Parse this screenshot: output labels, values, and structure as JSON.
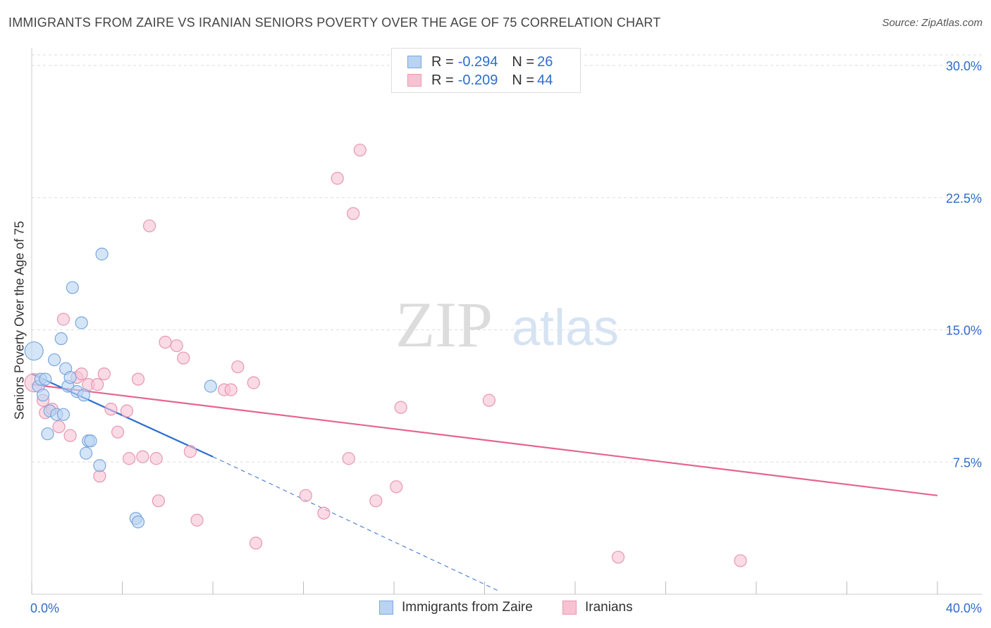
{
  "title": "IMMIGRANTS FROM ZAIRE VS IRANIAN SENIORS POVERTY OVER THE AGE OF 75 CORRELATION CHART",
  "source": "Source: ZipAtlas.com",
  "watermark": {
    "zip": "ZIP",
    "atlas": "atlas"
  },
  "legend": {
    "rows": [
      {
        "r_label": "R = ",
        "r_value": "-0.294",
        "n_label": "N = ",
        "n_value": "26"
      },
      {
        "r_label": "R = ",
        "r_value": "-0.209",
        "n_label": "N = ",
        "n_value": "44"
      }
    ]
  },
  "bottom_legend": [
    {
      "label": "Immigrants from Zaire"
    },
    {
      "label": "Iranians"
    }
  ],
  "colors": {
    "blue_fill": "#b9d3f3",
    "blue_stroke": "#7aa7dd",
    "blue_line": "#2e6fd0",
    "pink_fill": "#f7c3d3",
    "pink_stroke": "#e896b1",
    "pink_line": "#e56590",
    "axis_label": "#2e6dc9",
    "grid": "#dddddd"
  },
  "chart_data": {
    "type": "scatter",
    "title": "IMMIGRANTS FROM ZAIRE VS IRANIAN SENIORS POVERTY OVER THE AGE OF 75 CORRELATION CHART",
    "xlabel": "",
    "ylabel": "Seniors Poverty Over the Age of 75",
    "xlim": [
      0,
      40
    ],
    "ylim": [
      0,
      30.6
    ],
    "x_tick_labels": [
      "0.0%",
      "40.0%"
    ],
    "y_ticks": [
      7.5,
      15.0,
      22.5,
      30.0
    ],
    "y_tick_labels": [
      "7.5%",
      "15.0%",
      "22.5%",
      "30.0%"
    ],
    "series": [
      {
        "name": "Immigrants from Zaire",
        "R": -0.294,
        "N": 26,
        "points": [
          {
            "x": 0.1,
            "y": 13.8,
            "big": true
          },
          {
            "x": 0.3,
            "y": 11.8
          },
          {
            "x": 0.4,
            "y": 12.2
          },
          {
            "x": 0.5,
            "y": 11.3
          },
          {
            "x": 0.6,
            "y": 12.2
          },
          {
            "x": 0.7,
            "y": 9.1
          },
          {
            "x": 0.8,
            "y": 10.4
          },
          {
            "x": 1.0,
            "y": 13.3
          },
          {
            "x": 1.1,
            "y": 10.2
          },
          {
            "x": 1.3,
            "y": 14.5
          },
          {
            "x": 1.4,
            "y": 10.2
          },
          {
            "x": 1.5,
            "y": 12.8
          },
          {
            "x": 1.6,
            "y": 11.8
          },
          {
            "x": 1.7,
            "y": 12.3
          },
          {
            "x": 1.8,
            "y": 17.4
          },
          {
            "x": 2.0,
            "y": 11.5
          },
          {
            "x": 2.2,
            "y": 15.4
          },
          {
            "x": 2.3,
            "y": 11.3
          },
          {
            "x": 2.4,
            "y": 8.0
          },
          {
            "x": 2.5,
            "y": 8.7
          },
          {
            "x": 2.6,
            "y": 8.7
          },
          {
            "x": 3.0,
            "y": 7.3
          },
          {
            "x": 3.1,
            "y": 19.3
          },
          {
            "x": 4.6,
            "y": 4.3
          },
          {
            "x": 4.7,
            "y": 4.1
          },
          {
            "x": 7.9,
            "y": 11.8
          }
        ],
        "trend": {
          "x1": 0,
          "y1": 12.5,
          "x2": 8.0,
          "y2": 7.8,
          "dash_x2": 20.6,
          "dash_y2": 0.2
        }
      },
      {
        "name": "Iranians",
        "R": -0.209,
        "N": 44,
        "points": [
          {
            "x": 0.1,
            "y": 12.0,
            "big": true
          },
          {
            "x": 0.5,
            "y": 11.0
          },
          {
            "x": 0.6,
            "y": 10.3
          },
          {
            "x": 0.9,
            "y": 10.5
          },
          {
            "x": 1.2,
            "y": 9.5
          },
          {
            "x": 1.4,
            "y": 15.6
          },
          {
            "x": 1.7,
            "y": 9.0
          },
          {
            "x": 2.0,
            "y": 12.3
          },
          {
            "x": 2.2,
            "y": 12.5
          },
          {
            "x": 2.5,
            "y": 11.9
          },
          {
            "x": 2.9,
            "y": 11.9
          },
          {
            "x": 3.0,
            "y": 6.7
          },
          {
            "x": 3.2,
            "y": 12.5
          },
          {
            "x": 3.5,
            "y": 10.5
          },
          {
            "x": 3.8,
            "y": 9.2
          },
          {
            "x": 4.2,
            "y": 10.4
          },
          {
            "x": 4.3,
            "y": 7.7
          },
          {
            "x": 4.7,
            "y": 12.2
          },
          {
            "x": 4.9,
            "y": 7.8
          },
          {
            "x": 5.2,
            "y": 20.9
          },
          {
            "x": 5.5,
            "y": 7.7
          },
          {
            "x": 5.6,
            "y": 5.3
          },
          {
            "x": 5.9,
            "y": 14.3
          },
          {
            "x": 6.4,
            "y": 14.1
          },
          {
            "x": 6.7,
            "y": 13.4
          },
          {
            "x": 7.0,
            "y": 8.1
          },
          {
            "x": 7.3,
            "y": 4.2
          },
          {
            "x": 8.5,
            "y": 11.6
          },
          {
            "x": 8.8,
            "y": 11.6
          },
          {
            "x": 9.1,
            "y": 12.9
          },
          {
            "x": 9.8,
            "y": 12.0
          },
          {
            "x": 9.9,
            "y": 2.9
          },
          {
            "x": 12.1,
            "y": 5.6
          },
          {
            "x": 12.9,
            "y": 4.6
          },
          {
            "x": 13.5,
            "y": 23.6
          },
          {
            "x": 14.0,
            "y": 7.7
          },
          {
            "x": 14.2,
            "y": 21.6
          },
          {
            "x": 14.5,
            "y": 25.2
          },
          {
            "x": 15.2,
            "y": 5.3
          },
          {
            "x": 16.1,
            "y": 6.1
          },
          {
            "x": 16.3,
            "y": 10.6
          },
          {
            "x": 20.2,
            "y": 11.0
          },
          {
            "x": 25.9,
            "y": 2.1
          },
          {
            "x": 31.3,
            "y": 1.9
          }
        ],
        "trend": {
          "x1": 0,
          "y1": 11.9,
          "x2": 40,
          "y2": 5.6
        }
      }
    ]
  }
}
